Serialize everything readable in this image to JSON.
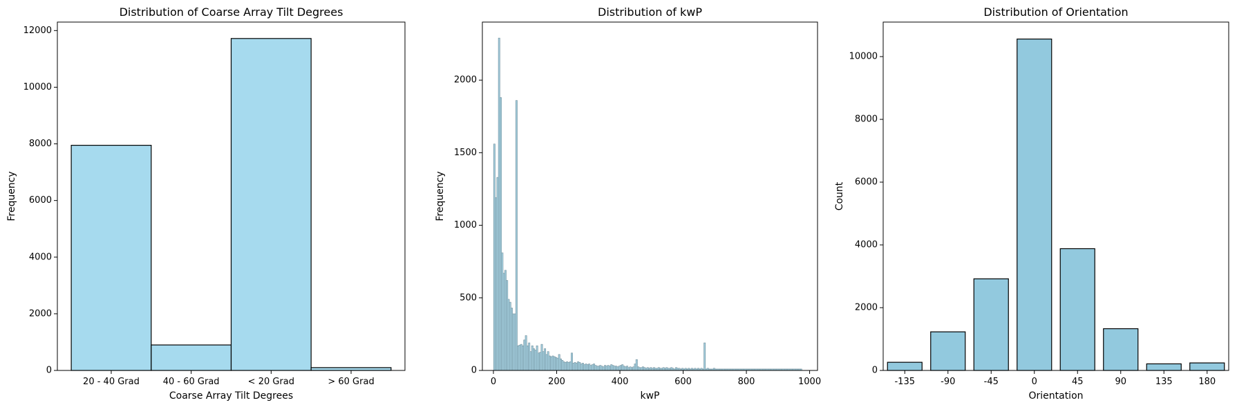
{
  "figure": {
    "background": "#ffffff"
  },
  "chart_data": [
    {
      "type": "bar",
      "title": "Distribution of Coarse Array Tilt Degrees",
      "xlabel": "Coarse Array Tilt Degrees",
      "ylabel": "Frequency",
      "categories": [
        "20 - 40 Grad",
        "40 - 60 Grad",
        "< 20 Grad",
        "> 60 Grad"
      ],
      "values": [
        7950,
        900,
        11720,
        100
      ],
      "ylim": [
        0,
        12300
      ],
      "yticks": [
        0,
        2000,
        4000,
        6000,
        8000,
        10000,
        12000
      ],
      "ytick_labels": [
        "0",
        "2000",
        "4000",
        "6000",
        "8000",
        "10000",
        "12000"
      ],
      "bar_color": "#a6daee",
      "edge_color": "#000000",
      "grid": false
    },
    {
      "type": "bar",
      "title": "Distribution of kwP",
      "xlabel": "kwP",
      "ylabel": "Frequency",
      "bin_width": 5,
      "x": [
        3,
        8,
        13,
        18,
        23,
        28,
        33,
        38,
        43,
        48,
        53,
        58,
        63,
        68,
        73,
        78,
        83,
        88,
        93,
        98,
        103,
        108,
        113,
        118,
        123,
        128,
        133,
        138,
        143,
        148,
        153,
        158,
        163,
        168,
        173,
        178,
        183,
        188,
        193,
        198,
        203,
        208,
        213,
        218,
        223,
        228,
        233,
        238,
        243,
        248,
        253,
        258,
        263,
        268,
        273,
        278,
        283,
        288,
        293,
        298,
        303,
        308,
        313,
        318,
        323,
        328,
        333,
        338,
        343,
        348,
        353,
        358,
        363,
        368,
        373,
        378,
        383,
        388,
        393,
        398,
        403,
        408,
        413,
        418,
        423,
        428,
        433,
        438,
        443,
        448,
        453,
        458,
        463,
        468,
        473,
        478,
        483,
        488,
        493,
        498,
        503,
        508,
        513,
        518,
        523,
        528,
        533,
        538,
        543,
        548,
        553,
        558,
        563,
        568,
        573,
        578,
        583,
        588,
        593,
        598,
        603,
        608,
        613,
        618,
        623,
        628,
        633,
        638,
        643,
        648,
        653,
        658,
        663,
        668,
        673,
        678,
        683,
        688,
        693,
        698,
        703,
        708,
        713,
        718,
        723,
        728,
        733,
        738,
        743,
        748,
        753,
        758,
        763,
        768,
        773,
        778,
        783,
        788,
        793,
        798,
        803,
        808,
        813,
        818,
        823,
        828,
        833,
        838,
        843,
        848,
        853,
        858,
        863,
        868,
        873,
        878,
        883,
        888,
        893,
        898,
        903,
        908,
        913,
        918,
        923,
        928,
        933,
        938,
        943,
        948,
        953,
        958,
        963,
        968,
        973
      ],
      "values": [
        1560,
        1190,
        1330,
        2290,
        1880,
        810,
        670,
        690,
        620,
        490,
        470,
        430,
        390,
        390,
        1860,
        170,
        175,
        180,
        170,
        210,
        240,
        170,
        190,
        130,
        170,
        150,
        140,
        170,
        120,
        125,
        180,
        130,
        150,
        110,
        130,
        100,
        95,
        100,
        95,
        90,
        85,
        110,
        80,
        70,
        60,
        55,
        60,
        55,
        60,
        120,
        50,
        55,
        50,
        60,
        55,
        45,
        50,
        40,
        45,
        40,
        45,
        35,
        40,
        45,
        35,
        30,
        30,
        35,
        30,
        25,
        35,
        30,
        35,
        30,
        40,
        35,
        30,
        30,
        25,
        30,
        35,
        40,
        30,
        25,
        30,
        20,
        25,
        20,
        25,
        45,
        75,
        25,
        20,
        20,
        25,
        20,
        15,
        20,
        15,
        20,
        15,
        20,
        15,
        15,
        20,
        15,
        15,
        20,
        15,
        20,
        15,
        15,
        20,
        15,
        10,
        20,
        15,
        15,
        10,
        15,
        10,
        15,
        10,
        15,
        10,
        15,
        10,
        15,
        10,
        15,
        10,
        15,
        10,
        190,
        10,
        15,
        10,
        10,
        10,
        15,
        10,
        10,
        10,
        10,
        10,
        10,
        10,
        10,
        10,
        10,
        10,
        10,
        10,
        10,
        10,
        10,
        10,
        10,
        10,
        10,
        10,
        10,
        10,
        10,
        10,
        10,
        10,
        10,
        10,
        10,
        10,
        10,
        10,
        10,
        10,
        10,
        10,
        10,
        10,
        10,
        10,
        10,
        10,
        10,
        10,
        10,
        10,
        10,
        10,
        10,
        10,
        10,
        10,
        10,
        10
      ],
      "xlim": [
        -35,
        1025
      ],
      "ylim": [
        0,
        2400
      ],
      "xticks": [
        0,
        200,
        400,
        600,
        800,
        1000
      ],
      "xtick_labels": [
        "0",
        "200",
        "400",
        "600",
        "800",
        "1000"
      ],
      "yticks": [
        0,
        500,
        1000,
        1500,
        2000
      ],
      "ytick_labels": [
        "0",
        "500",
        "1000",
        "1500",
        "2000"
      ],
      "bar_color": "#a4cfdf",
      "edge_color": "#6f8d99",
      "grid": false
    },
    {
      "type": "bar",
      "title": "Distribution of Orientation",
      "xlabel": "Orientation",
      "ylabel": "Count",
      "categories": [
        "-135",
        "-90",
        "-45",
        "0",
        "45",
        "90",
        "135",
        "180"
      ],
      "values": [
        260,
        1230,
        2920,
        10560,
        3880,
        1330,
        210,
        240
      ],
      "ylim": [
        0,
        11100
      ],
      "yticks": [
        0,
        2000,
        4000,
        6000,
        8000,
        10000
      ],
      "ytick_labels": [
        "0",
        "2000",
        "4000",
        "6000",
        "8000",
        "10000"
      ],
      "bar_color": "#92c9de",
      "edge_color": "#000000",
      "grid": false
    }
  ]
}
